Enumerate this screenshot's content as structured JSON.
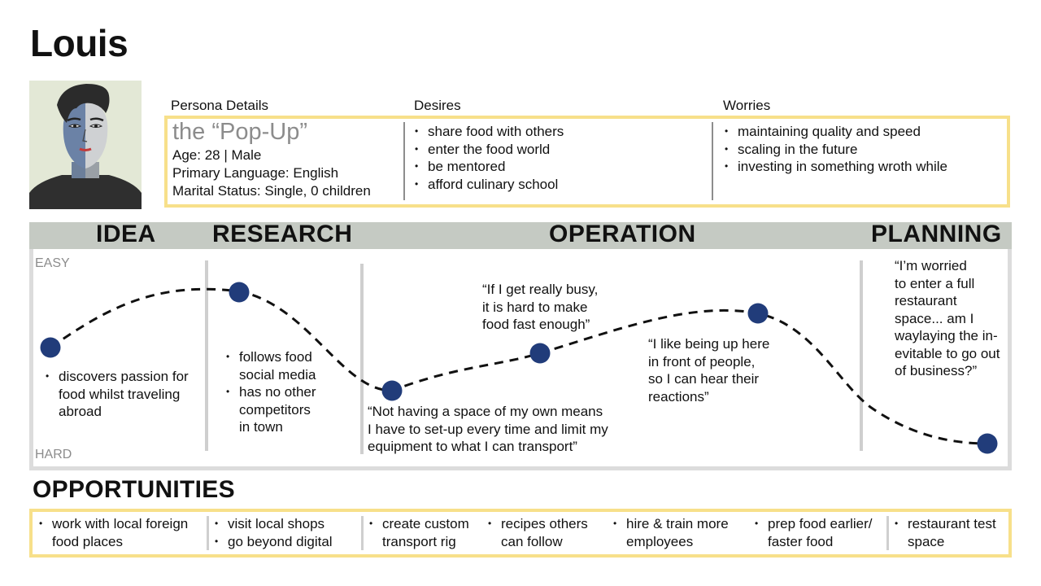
{
  "persona_name": "Louis",
  "colors": {
    "accent_yellow": "#f7e08a",
    "dot_navy": "#213c7a",
    "stage_bar": "#c5cac3",
    "muted_text": "#8c8c8c"
  },
  "persona": {
    "details_label": "Persona Details",
    "nickname": "the “Pop-Up”",
    "age": "Age: 28 | Male",
    "language": "Primary Language: English",
    "marital": "Marital Status: Single, 0 children"
  },
  "desires": {
    "label": "Desires",
    "items": [
      "share food with others",
      "enter the food world",
      "be mentored",
      "afford culinary school"
    ]
  },
  "worries": {
    "label": "Worries",
    "items": [
      "maintaining quality and speed",
      "scaling in the future",
      "investing in something wroth while"
    ]
  },
  "stages": [
    "IDEA",
    "RESEARCH",
    "OPERATION",
    "PLANNING"
  ],
  "axis": {
    "top": "EASY",
    "bottom": "HARD"
  },
  "journey": {
    "idea_bullet": [
      "discovers passion for",
      "food whilst traveling",
      "abroad"
    ],
    "research_bullet_1": [
      "follows food",
      "social media"
    ],
    "research_bullet_2": [
      "has no other",
      "competitors",
      "in town"
    ],
    "quote_space": [
      "“Not having a space of my own means",
      "I have to set-up every time and limit my",
      "equipment to what I can transport”"
    ],
    "quote_busy": [
      "“If I get really busy,",
      "it is hard to make",
      "food fast enough”"
    ],
    "quote_up_here": [
      "“I like being up here",
      "in front of people,",
      "so I can hear their",
      "reactions”"
    ],
    "quote_worried": [
      "“I’m worried",
      "to enter a full",
      "restaurant",
      "space... am I",
      "waylaying the in-",
      "evitable to go out",
      "of business?”"
    ]
  },
  "opportunities": {
    "title": "OPPORTUNITIES",
    "groups": [
      {
        "lines": [
          "work with local foreign",
          "food places"
        ]
      },
      {
        "lines": [
          "visit local shops",
          "go beyond digital"
        ]
      },
      {
        "lines": [
          "create custom",
          "transport rig"
        ]
      },
      {
        "lines": [
          "recipes others",
          "can follow"
        ]
      },
      {
        "lines": [
          "hire & train more",
          "employees"
        ]
      },
      {
        "lines": [
          "prep food earlier/",
          "faster food"
        ]
      },
      {
        "lines": [
          "restaurant test",
          "space"
        ]
      }
    ]
  }
}
